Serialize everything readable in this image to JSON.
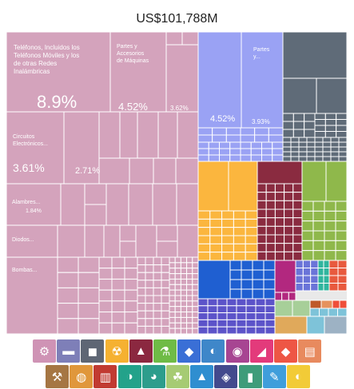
{
  "chart_data": {
    "type": "treemap",
    "title": "US$101,788M",
    "labeled_cells": [
      {
        "group": "machines",
        "label": "Teléfonos, Incluidos los Teléfonos Móviles y los de otras Redes Inalámbricas",
        "share_label": "8.9%",
        "share": 8.9
      },
      {
        "group": "machines",
        "label": "Partes y Accesorios de Máquinas",
        "share_label": "4.52%",
        "share": 4.52
      },
      {
        "group": "machines",
        "label": "",
        "share_label": "3.62%",
        "share": 3.62
      },
      {
        "group": "machines",
        "label": "Circuitos Electrónicos...",
        "share_label": "3.61%",
        "share": 3.61
      },
      {
        "group": "machines",
        "label": "",
        "share_label": "2.71%",
        "share": 2.71
      },
      {
        "group": "machines",
        "label": "Alambres...",
        "share_label": "1.84%",
        "share": 1.84
      },
      {
        "group": "machines",
        "label": "Diodos...",
        "share_label": "",
        "share": null
      },
      {
        "group": "machines",
        "label": "Bombas...",
        "share_label": "",
        "share": null
      },
      {
        "group": "metals",
        "label": "",
        "share_label": "4.52%",
        "share": 4.52
      },
      {
        "group": "metals",
        "label": "Partes y...",
        "share_label": "3.93%",
        "share": 3.93
      }
    ],
    "groups": [
      {
        "name": "machines",
        "color": "#d4a3bc"
      },
      {
        "name": "metals",
        "color": "#9aa2f4"
      },
      {
        "name": "transportation",
        "color": "#5f6b78"
      },
      {
        "name": "textiles",
        "color": "#fbb63e"
      },
      {
        "name": "chemicals",
        "color": "#8a2b40"
      },
      {
        "name": "vegetable",
        "color": "#8fb84b"
      },
      {
        "name": "instruments",
        "color": "#1f5fd1"
      },
      {
        "name": "electronics",
        "color": "#5c53c9"
      },
      {
        "name": "plastics",
        "color": "#b2287f"
      },
      {
        "name": "stone",
        "color": "#6a74d8"
      },
      {
        "name": "minerals",
        "color": "#2fb59e"
      },
      {
        "name": "food",
        "color": "#e85a3e"
      },
      {
        "name": "animal",
        "color": "#a7cf99"
      },
      {
        "name": "footwear",
        "color": "#bf5a2a"
      },
      {
        "name": "paper",
        "color": "#e6925d"
      },
      {
        "name": "misc",
        "color": "#ef4f3a"
      },
      {
        "name": "wood",
        "color": "#e0a95b"
      },
      {
        "name": "other",
        "color": "#7ec3d9"
      }
    ]
  },
  "legend_icons": [
    {
      "name": "machines-icon",
      "color": "#cf93b5"
    },
    {
      "name": "transportation-icon",
      "color": "#7e7fb8"
    },
    {
      "name": "metals-icon",
      "color": "#5e6674"
    },
    {
      "name": "chemicals-icon",
      "color": "#f5b131"
    },
    {
      "name": "textiles-icon",
      "color": "#8b2840"
    },
    {
      "name": "instruments-icon",
      "color": "#6fbb46"
    },
    {
      "name": "electronics-icon",
      "color": "#3a6fd6"
    },
    {
      "name": "plastics-icon",
      "color": "#3f87c9"
    },
    {
      "name": "stone-icon",
      "color": "#a74592"
    },
    {
      "name": "footwear-icon",
      "color": "#e33a7b"
    },
    {
      "name": "misc-icon",
      "color": "#ee5645"
    },
    {
      "name": "paper-icon",
      "color": "#e88a5e"
    },
    {
      "name": "minerals-icon",
      "color": "#a57643"
    },
    {
      "name": "animal-hides-icon",
      "color": "#e0973b"
    },
    {
      "name": "animal-products-icon",
      "color": "#c13b32"
    },
    {
      "name": "wood-icon",
      "color": "#23a28a"
    },
    {
      "name": "food-icon",
      "color": "#2d9d8c"
    },
    {
      "name": "vegetable-icon",
      "color": "#a6cb73"
    },
    {
      "name": "weapons-icon",
      "color": "#2f8ed0"
    },
    {
      "name": "gems-icon",
      "color": "#434a8d"
    },
    {
      "name": "beverages-icon",
      "color": "#3e9c7a"
    },
    {
      "name": "arts-icon",
      "color": "#3f9edb"
    },
    {
      "name": "misc-products-icon",
      "color": "#f2cb37"
    }
  ]
}
